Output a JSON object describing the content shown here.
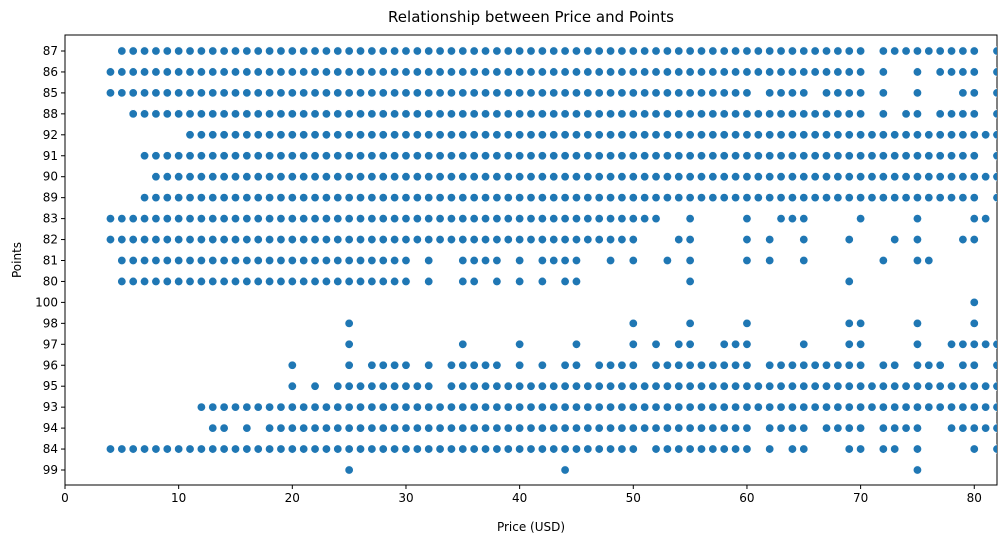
{
  "chart_data": {
    "type": "scatter",
    "title": "Relationship between Price and Points",
    "xlabel": "Price (USD)",
    "ylabel": "Points",
    "xlim": [
      0,
      82
    ],
    "xticks": [
      0,
      10,
      20,
      30,
      40,
      50,
      60,
      70,
      80
    ],
    "y_categories": [
      "87",
      "86",
      "85",
      "88",
      "92",
      "91",
      "90",
      "89",
      "83",
      "82",
      "81",
      "80",
      "100",
      "98",
      "97",
      "96",
      "95",
      "93",
      "94",
      "84",
      "99"
    ],
    "color": "#1f77b4",
    "grid": false,
    "points": [
      {
        "y": "87",
        "x": [
          5,
          6,
          7,
          8,
          9,
          10,
          11,
          12,
          13,
          14,
          15,
          16,
          17,
          18,
          19,
          20,
          21,
          22,
          23,
          24,
          25,
          26,
          27,
          28,
          29,
          30,
          31,
          32,
          33,
          34,
          35,
          36,
          37,
          38,
          39,
          40,
          41,
          42,
          43,
          44,
          45,
          46,
          47,
          48,
          49,
          50,
          51,
          52,
          53,
          54,
          55,
          56,
          57,
          58,
          59,
          60,
          61,
          62,
          63,
          64,
          65,
          66,
          67,
          68,
          69,
          70,
          72,
          73,
          74,
          75,
          76,
          77,
          78,
          79,
          80,
          82
        ]
      },
      {
        "y": "86",
        "x": [
          4,
          5,
          6,
          7,
          8,
          9,
          10,
          11,
          12,
          13,
          14,
          15,
          16,
          17,
          18,
          19,
          20,
          21,
          22,
          23,
          24,
          25,
          26,
          27,
          28,
          29,
          30,
          31,
          32,
          33,
          34,
          35,
          36,
          37,
          38,
          39,
          40,
          41,
          42,
          43,
          44,
          45,
          46,
          47,
          48,
          49,
          50,
          51,
          52,
          53,
          54,
          55,
          56,
          57,
          58,
          59,
          60,
          61,
          62,
          63,
          64,
          65,
          66,
          67,
          68,
          69,
          70,
          72,
          75,
          77,
          78,
          79,
          80,
          82
        ]
      },
      {
        "y": "85",
        "x": [
          4,
          5,
          6,
          7,
          8,
          9,
          10,
          11,
          12,
          13,
          14,
          15,
          16,
          17,
          18,
          19,
          20,
          21,
          22,
          23,
          24,
          25,
          26,
          27,
          28,
          29,
          30,
          31,
          32,
          33,
          34,
          35,
          36,
          37,
          38,
          39,
          40,
          41,
          42,
          43,
          44,
          45,
          46,
          47,
          48,
          49,
          50,
          51,
          52,
          53,
          54,
          55,
          56,
          57,
          58,
          59,
          60,
          62,
          63,
          64,
          65,
          67,
          68,
          69,
          70,
          72,
          75,
          79,
          80,
          82
        ]
      },
      {
        "y": "88",
        "x": [
          6,
          7,
          8,
          9,
          10,
          11,
          12,
          13,
          14,
          15,
          16,
          17,
          18,
          19,
          20,
          21,
          22,
          23,
          24,
          25,
          26,
          27,
          28,
          29,
          30,
          31,
          32,
          33,
          34,
          35,
          36,
          37,
          38,
          39,
          40,
          41,
          42,
          43,
          44,
          45,
          46,
          47,
          48,
          49,
          50,
          51,
          52,
          53,
          54,
          55,
          56,
          57,
          58,
          59,
          60,
          61,
          62,
          63,
          64,
          65,
          66,
          67,
          68,
          69,
          70,
          72,
          74,
          75,
          77,
          78,
          79,
          80,
          82
        ]
      },
      {
        "y": "92",
        "x": [
          11,
          12,
          13,
          14,
          15,
          16,
          17,
          18,
          19,
          20,
          21,
          22,
          23,
          24,
          25,
          26,
          27,
          28,
          29,
          30,
          31,
          32,
          33,
          34,
          35,
          36,
          37,
          38,
          39,
          40,
          41,
          42,
          43,
          44,
          45,
          46,
          47,
          48,
          49,
          50,
          51,
          52,
          53,
          54,
          55,
          56,
          57,
          58,
          59,
          60,
          61,
          62,
          63,
          64,
          65,
          66,
          67,
          68,
          69,
          70,
          71,
          72,
          73,
          74,
          75,
          76,
          77,
          78,
          79,
          80,
          81,
          82
        ]
      },
      {
        "y": "91",
        "x": [
          7,
          8,
          9,
          10,
          11,
          12,
          13,
          14,
          15,
          16,
          17,
          18,
          19,
          20,
          21,
          22,
          23,
          24,
          25,
          26,
          27,
          28,
          29,
          30,
          31,
          32,
          33,
          34,
          35,
          36,
          37,
          38,
          39,
          40,
          41,
          42,
          43,
          44,
          45,
          46,
          47,
          48,
          49,
          50,
          51,
          52,
          53,
          54,
          55,
          56,
          57,
          58,
          59,
          60,
          61,
          62,
          63,
          64,
          65,
          66,
          67,
          68,
          69,
          70,
          71,
          72,
          73,
          74,
          75,
          76,
          77,
          78,
          79,
          80,
          82
        ]
      },
      {
        "y": "90",
        "x": [
          8,
          9,
          10,
          11,
          12,
          13,
          14,
          15,
          16,
          17,
          18,
          19,
          20,
          21,
          22,
          23,
          24,
          25,
          26,
          27,
          28,
          29,
          30,
          31,
          32,
          33,
          34,
          35,
          36,
          37,
          38,
          39,
          40,
          41,
          42,
          43,
          44,
          45,
          46,
          47,
          48,
          49,
          50,
          51,
          52,
          53,
          54,
          55,
          56,
          57,
          58,
          59,
          60,
          61,
          62,
          63,
          64,
          65,
          66,
          67,
          68,
          69,
          70,
          71,
          72,
          73,
          74,
          75,
          76,
          77,
          78,
          79,
          80,
          81,
          82
        ]
      },
      {
        "y": "89",
        "x": [
          7,
          8,
          9,
          10,
          11,
          12,
          13,
          14,
          15,
          16,
          17,
          18,
          19,
          20,
          21,
          22,
          23,
          24,
          25,
          26,
          27,
          28,
          29,
          30,
          31,
          32,
          33,
          34,
          35,
          36,
          37,
          38,
          39,
          40,
          41,
          42,
          43,
          44,
          45,
          46,
          47,
          48,
          49,
          50,
          51,
          52,
          53,
          54,
          55,
          56,
          57,
          58,
          59,
          60,
          61,
          62,
          63,
          64,
          65,
          66,
          67,
          68,
          69,
          70,
          71,
          72,
          73,
          74,
          75,
          76,
          77,
          78,
          79,
          80,
          82
        ]
      },
      {
        "y": "83",
        "x": [
          4,
          5,
          6,
          7,
          8,
          9,
          10,
          11,
          12,
          13,
          14,
          15,
          16,
          17,
          18,
          19,
          20,
          21,
          22,
          23,
          24,
          25,
          26,
          27,
          28,
          29,
          30,
          31,
          32,
          33,
          34,
          35,
          36,
          37,
          38,
          39,
          40,
          41,
          42,
          43,
          44,
          45,
          46,
          47,
          48,
          49,
          50,
          51,
          52,
          55,
          60,
          63,
          64,
          65,
          70,
          75,
          80,
          81
        ]
      },
      {
        "y": "82",
        "x": [
          4,
          5,
          6,
          7,
          8,
          9,
          10,
          11,
          12,
          13,
          14,
          15,
          16,
          17,
          18,
          19,
          20,
          21,
          22,
          23,
          24,
          25,
          26,
          27,
          28,
          29,
          30,
          31,
          32,
          33,
          34,
          35,
          36,
          37,
          38,
          39,
          40,
          41,
          42,
          43,
          44,
          45,
          46,
          47,
          48,
          49,
          50,
          54,
          55,
          60,
          62,
          65,
          69,
          73,
          75,
          79,
          80
        ]
      },
      {
        "y": "81",
        "x": [
          5,
          6,
          7,
          8,
          9,
          10,
          11,
          12,
          13,
          14,
          15,
          16,
          17,
          18,
          19,
          20,
          21,
          22,
          23,
          24,
          25,
          26,
          27,
          28,
          29,
          30,
          32,
          35,
          36,
          37,
          38,
          40,
          42,
          43,
          44,
          45,
          48,
          50,
          53,
          55,
          60,
          62,
          65,
          72,
          75,
          76
        ]
      },
      {
        "y": "80",
        "x": [
          5,
          6,
          7,
          8,
          9,
          10,
          11,
          12,
          13,
          14,
          15,
          16,
          17,
          18,
          19,
          20,
          21,
          22,
          23,
          24,
          25,
          26,
          27,
          28,
          29,
          30,
          32,
          35,
          36,
          38,
          40,
          42,
          44,
          45,
          55,
          69
        ]
      },
      {
        "y": "100",
        "x": [
          80
        ]
      },
      {
        "y": "98",
        "x": [
          25,
          50,
          55,
          60,
          69,
          70,
          75,
          80
        ]
      },
      {
        "y": "97",
        "x": [
          25,
          35,
          40,
          45,
          50,
          52,
          54,
          55,
          58,
          59,
          60,
          65,
          69,
          70,
          75,
          78,
          79,
          80,
          81,
          82
        ]
      },
      {
        "y": "96",
        "x": [
          20,
          25,
          27,
          28,
          29,
          30,
          32,
          34,
          35,
          36,
          37,
          38,
          40,
          42,
          44,
          45,
          47,
          48,
          49,
          50,
          52,
          53,
          54,
          55,
          56,
          57,
          58,
          59,
          60,
          62,
          63,
          64,
          65,
          66,
          67,
          68,
          69,
          70,
          72,
          73,
          75,
          76,
          77,
          79,
          80,
          82
        ]
      },
      {
        "y": "95",
        "x": [
          20,
          22,
          24,
          25,
          26,
          27,
          28,
          29,
          30,
          31,
          32,
          34,
          35,
          36,
          37,
          38,
          39,
          40,
          41,
          42,
          43,
          44,
          45,
          46,
          47,
          48,
          49,
          50,
          51,
          52,
          53,
          54,
          55,
          56,
          57,
          58,
          59,
          60,
          61,
          62,
          63,
          64,
          65,
          66,
          67,
          68,
          69,
          70,
          71,
          72,
          73,
          74,
          75,
          76,
          77,
          78,
          79,
          80,
          81,
          82
        ]
      },
      {
        "y": "93",
        "x": [
          12,
          13,
          14,
          15,
          16,
          17,
          18,
          19,
          20,
          21,
          22,
          23,
          24,
          25,
          26,
          27,
          28,
          29,
          30,
          31,
          32,
          33,
          34,
          35,
          36,
          37,
          38,
          39,
          40,
          41,
          42,
          43,
          44,
          45,
          46,
          47,
          48,
          49,
          50,
          51,
          52,
          53,
          54,
          55,
          56,
          57,
          58,
          59,
          60,
          61,
          62,
          63,
          64,
          65,
          66,
          67,
          68,
          69,
          70,
          71,
          72,
          73,
          74,
          75,
          76,
          77,
          78,
          79,
          80,
          81,
          82
        ]
      },
      {
        "y": "94",
        "x": [
          13,
          14,
          16,
          18,
          19,
          20,
          21,
          22,
          23,
          24,
          25,
          26,
          27,
          28,
          29,
          30,
          31,
          32,
          33,
          34,
          35,
          36,
          37,
          38,
          39,
          40,
          41,
          42,
          43,
          44,
          45,
          46,
          47,
          48,
          49,
          50,
          51,
          52,
          53,
          54,
          55,
          56,
          57,
          58,
          59,
          60,
          62,
          63,
          64,
          65,
          67,
          68,
          69,
          70,
          72,
          73,
          74,
          75,
          78,
          79,
          80,
          81,
          82
        ]
      },
      {
        "y": "84",
        "x": [
          4,
          5,
          6,
          7,
          8,
          9,
          10,
          11,
          12,
          13,
          14,
          15,
          16,
          17,
          18,
          19,
          20,
          21,
          22,
          23,
          24,
          25,
          26,
          27,
          28,
          29,
          30,
          31,
          32,
          33,
          34,
          35,
          36,
          37,
          38,
          39,
          40,
          41,
          42,
          43,
          44,
          45,
          46,
          47,
          48,
          49,
          50,
          52,
          53,
          54,
          55,
          56,
          57,
          58,
          59,
          60,
          62,
          64,
          65,
          69,
          70,
          72,
          73,
          75,
          80,
          82
        ]
      },
      {
        "y": "99",
        "x": [
          25,
          44,
          75
        ]
      }
    ]
  }
}
